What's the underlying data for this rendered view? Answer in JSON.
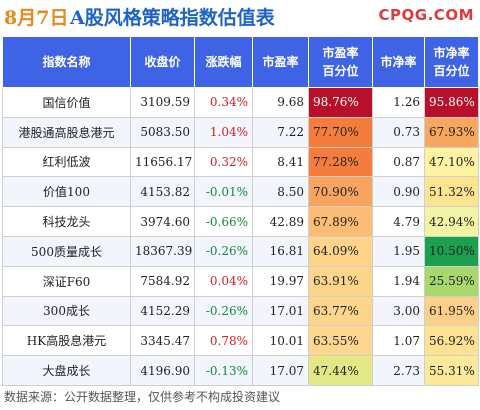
{
  "header": {
    "date": "8月7日",
    "title": "A股风格策略指数估值表",
    "logo": "CPQG.COM"
  },
  "table": {
    "columns": [
      "指数名称",
      "收盘价",
      "涨跌幅",
      "市盈率",
      "市盈率\n百分位",
      "市净率",
      "市净率\n百分位"
    ],
    "rows": [
      {
        "name": "国信价值",
        "close": "3109.59",
        "change": "0.34%",
        "pe": "9.68",
        "pe_pct": "98.76%",
        "pb": "1.26",
        "pb_pct": "95.86%"
      },
      {
        "name": "港股通高股息港元",
        "close": "5083.50",
        "change": "1.04%",
        "pe": "7.22",
        "pe_pct": "77.70%",
        "pb": "0.73",
        "pb_pct": "67.93%"
      },
      {
        "name": "红利低波",
        "close": "11656.17",
        "change": "0.32%",
        "pe": "8.41",
        "pe_pct": "77.28%",
        "pb": "0.87",
        "pb_pct": "47.10%"
      },
      {
        "name": "价值100",
        "close": "4153.82",
        "change": "-0.01%",
        "pe": "8.50",
        "pe_pct": "70.90%",
        "pb": "0.90",
        "pb_pct": "51.32%"
      },
      {
        "name": "科技龙头",
        "close": "3974.60",
        "change": "-0.66%",
        "pe": "42.89",
        "pe_pct": "67.89%",
        "pb": "4.79",
        "pb_pct": "42.94%"
      },
      {
        "name": "500质量成长",
        "close": "18367.39",
        "change": "-0.26%",
        "pe": "16.81",
        "pe_pct": "64.09%",
        "pb": "1.95",
        "pb_pct": "10.50%"
      },
      {
        "name": "深证F60",
        "close": "7584.92",
        "change": "0.04%",
        "pe": "19.97",
        "pe_pct": "63.91%",
        "pb": "1.94",
        "pb_pct": "25.59%"
      },
      {
        "name": "300成长",
        "close": "4152.29",
        "change": "-0.26%",
        "pe": "17.01",
        "pe_pct": "63.77%",
        "pb": "3.00",
        "pb_pct": "61.95%"
      },
      {
        "name": "HK高股息港元",
        "close": "3345.47",
        "change": "0.78%",
        "pe": "10.01",
        "pe_pct": "63.55%",
        "pb": "1.07",
        "pb_pct": "56.92%"
      },
      {
        "name": "大盘成长",
        "close": "4196.90",
        "change": "-0.13%",
        "pe": "17.07",
        "pe_pct": "47.44%",
        "pb": "2.73",
        "pb_pct": "55.31%"
      }
    ]
  },
  "colors": {
    "header_bg": "#3f63e5",
    "pe_pct_cells": [
      "#b8102b",
      "#f47c3c",
      "#f47c3c",
      "#f8a45e",
      "#fcbc73",
      "#fdd48a",
      "#fdd58b",
      "#fdd68c",
      "#fdd78d",
      "#e2e984"
    ],
    "pb_pct_cells": [
      "#b8102b",
      "#f8a75f",
      "#fdf3a2",
      "#fde58f",
      "#f1f4a4",
      "#1aa04e",
      "#a8d86b",
      "#fdd08a",
      "#fde291",
      "#fde99a"
    ]
  },
  "footer": {
    "text": "数据来源：公开数据整理，仅供参考不构成投资建议"
  }
}
